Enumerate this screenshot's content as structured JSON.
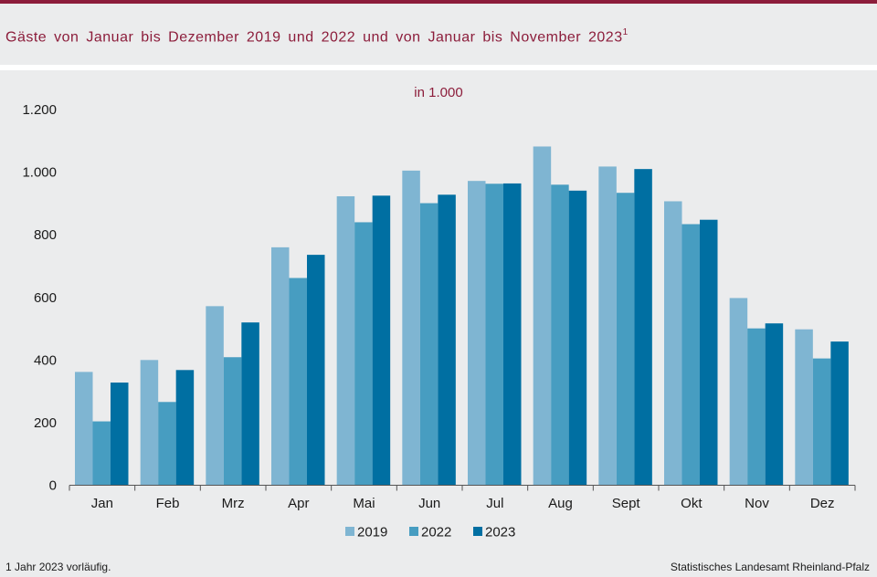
{
  "title": {
    "text": "Gäste von Januar bis Dezember 2019 und 2022 und von Januar bis November 2023",
    "footnote_marker": "1"
  },
  "footnote": {
    "marker": "1",
    "text": " Jahr 2023 vorläufig."
  },
  "source": "Statistisches Landesamt Rheinland-Pfalz",
  "colors": {
    "title": "#8c1d3b",
    "background": "#ebeced",
    "series_2019": "#7fb5d2",
    "series_2022": "#479dc1",
    "series_2023": "#006fa2"
  },
  "chart_data": {
    "type": "bar",
    "ylabel": "in 1.000",
    "ylim": [
      0,
      1200
    ],
    "yticks": [
      0,
      200,
      400,
      600,
      800,
      1000,
      1200
    ],
    "ytick_labels": [
      "0",
      "200",
      "400",
      "600",
      "800",
      "1.000",
      "1.200"
    ],
    "categories": [
      "Jan",
      "Feb",
      "Mrz",
      "Apr",
      "Mai",
      "Jun",
      "Jul",
      "Aug",
      "Sept",
      "Okt",
      "Nov",
      "Dez"
    ],
    "series": [
      {
        "name": "2019",
        "color": "#7fb5d2",
        "values": [
          362,
          400,
          572,
          760,
          923,
          1005,
          972,
          1082,
          1018,
          907,
          598,
          498
        ]
      },
      {
        "name": "2022",
        "color": "#479dc1",
        "values": [
          204,
          266,
          409,
          662,
          840,
          901,
          963,
          960,
          934,
          834,
          501,
          405
        ]
      },
      {
        "name": "2023",
        "color": "#006fa2",
        "values": [
          328,
          368,
          520,
          736,
          925,
          928,
          964,
          941,
          1010,
          848,
          517,
          459
        ]
      }
    ],
    "grid": false,
    "legend": "bottom-center"
  }
}
